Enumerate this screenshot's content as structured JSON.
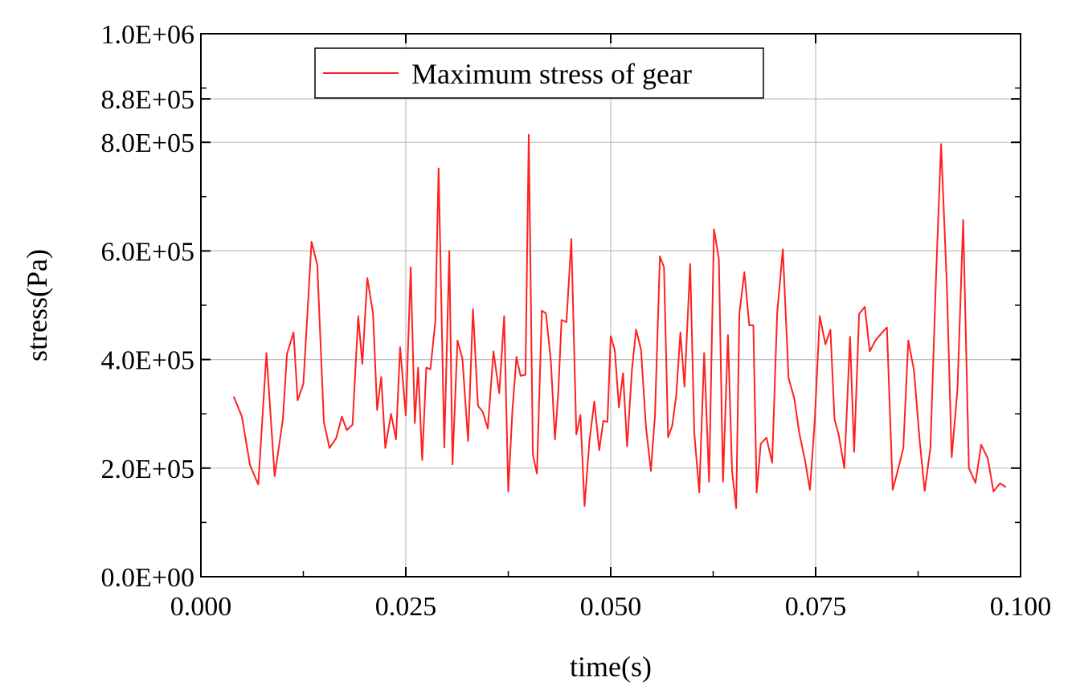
{
  "chart_data": {
    "type": "line",
    "title": "",
    "xlabel": "time(s)",
    "ylabel": "stress(Pa)",
    "xlim": [
      0.0,
      0.1
    ],
    "ylim": [
      0,
      1000000
    ],
    "grid": true,
    "legend_position": "top",
    "xticks": [
      {
        "value": 0.0,
        "label": "0.000"
      },
      {
        "value": 0.025,
        "label": "0.025"
      },
      {
        "value": 0.05,
        "label": "0.050"
      },
      {
        "value": 0.075,
        "label": "0.075"
      },
      {
        "value": 0.1,
        "label": "0.100"
      }
    ],
    "yticks": [
      {
        "value": 0,
        "label": "0.0E+00"
      },
      {
        "value": 200000,
        "label": "2.0E+05"
      },
      {
        "value": 400000,
        "label": "4.0E+05"
      },
      {
        "value": 600000,
        "label": "6.0E+05"
      },
      {
        "value": 800000,
        "label": "8.0E+05"
      },
      {
        "value": 880000,
        "label": "8.8E+05"
      },
      {
        "value": 1000000,
        "label": "1.0E+06"
      }
    ],
    "series": [
      {
        "name": "Maximum stress of gear",
        "color": "#ff2020",
        "x": [
          0.004,
          0.005,
          0.006,
          0.007,
          0.008,
          0.009,
          0.01,
          0.0105,
          0.0113,
          0.0118,
          0.0125,
          0.0135,
          0.0142,
          0.015,
          0.0157,
          0.0165,
          0.0172,
          0.0178,
          0.0185,
          0.0192,
          0.0197,
          0.0203,
          0.021,
          0.0215,
          0.022,
          0.0225,
          0.0232,
          0.0238,
          0.0243,
          0.025,
          0.0256,
          0.0261,
          0.0265,
          0.027,
          0.0275,
          0.028,
          0.0286,
          0.029,
          0.0297,
          0.0303,
          0.0307,
          0.0313,
          0.0319,
          0.0326,
          0.0332,
          0.0338,
          0.0344,
          0.035,
          0.0357,
          0.0364,
          0.037,
          0.0375,
          0.038,
          0.0385,
          0.039,
          0.0396,
          0.04,
          0.0405,
          0.041,
          0.0416,
          0.0421,
          0.0427,
          0.0432,
          0.0436,
          0.044,
          0.0446,
          0.0452,
          0.0458,
          0.0463,
          0.0468,
          0.0474,
          0.048,
          0.0486,
          0.0491,
          0.0496,
          0.05,
          0.0505,
          0.051,
          0.0515,
          0.052,
          0.0526,
          0.0531,
          0.0537,
          0.0543,
          0.0549,
          0.0554,
          0.056,
          0.0565,
          0.057,
          0.0575,
          0.058,
          0.0585,
          0.059,
          0.0597,
          0.0602,
          0.0608,
          0.0614,
          0.062,
          0.0626,
          0.0632,
          0.0637,
          0.0643,
          0.0648,
          0.0653,
          0.0657,
          0.0663,
          0.0669,
          0.0674,
          0.0678,
          0.0683,
          0.069,
          0.0697,
          0.0703,
          0.071,
          0.0717,
          0.0724,
          0.073,
          0.0737,
          0.0743,
          0.0749,
          0.0755,
          0.0762,
          0.0768,
          0.0773,
          0.0778,
          0.0785,
          0.0792,
          0.0797,
          0.0803,
          0.081,
          0.0816,
          0.0823,
          0.083,
          0.0837,
          0.0844,
          0.0851,
          0.0857,
          0.0863,
          0.087,
          0.0877,
          0.0883,
          0.089,
          0.0897,
          0.0903,
          0.091,
          0.0916,
          0.0923,
          0.093,
          0.0937,
          0.0945,
          0.0952,
          0.096,
          0.0967,
          0.0975,
          0.0982
        ],
        "y": [
          332000,
          295000,
          205000,
          170000,
          412000,
          185000,
          290000,
          410000,
          450000,
          325000,
          355000,
          617000,
          575000,
          285000,
          237000,
          255000,
          295000,
          270000,
          280000,
          480000,
          392000,
          550000,
          485000,
          307000,
          368000,
          237000,
          300000,
          253000,
          423000,
          297000,
          570000,
          283000,
          385000,
          215000,
          385000,
          382000,
          470000,
          752000,
          238000,
          600000,
          207000,
          435000,
          402000,
          250000,
          493000,
          315000,
          303000,
          273000,
          415000,
          338000,
          480000,
          157000,
          305000,
          405000,
          370000,
          372000,
          814000,
          225000,
          190000,
          490000,
          485000,
          397000,
          253000,
          338000,
          473000,
          469000,
          622000,
          262000,
          298000,
          130000,
          250000,
          323000,
          233000,
          287000,
          285000,
          443000,
          417000,
          312000,
          375000,
          240000,
          383000,
          455000,
          418000,
          275000,
          195000,
          298000,
          590000,
          570000,
          257000,
          278000,
          335000,
          450000,
          350000,
          576000,
          265000,
          155000,
          412000,
          175000,
          640000,
          585000,
          175000,
          445000,
          195000,
          126000,
          485000,
          561000,
          463000,
          463000,
          155000,
          245000,
          256000,
          210000,
          485000,
          603000,
          366000,
          328000,
          265000,
          215000,
          160000,
          290000,
          480000,
          428000,
          455000,
          290000,
          262000,
          200000,
          442000,
          230000,
          484000,
          497000,
          415000,
          435000,
          448000,
          459000,
          160000,
          200000,
          237000,
          435000,
          380000,
          250000,
          158000,
          237000,
          555000,
          797000,
          540000,
          220000,
          345000,
          657000,
          200000,
          173000,
          243000,
          218000,
          157000,
          172000,
          165000
        ]
      }
    ]
  }
}
